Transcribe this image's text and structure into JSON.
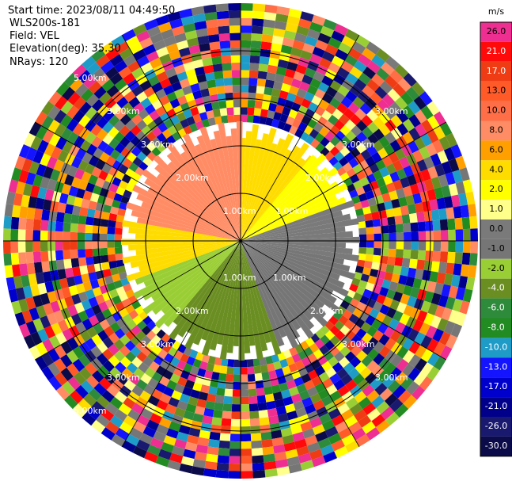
{
  "header": {
    "start_time": "Start time: 2023/08/11 04:49:50",
    "instrument": "WLS200s-181",
    "field": "Field: VEL",
    "elevation": "Elevation(deg): 35.30",
    "nrays": "NRays: 120"
  },
  "colorbar": {
    "unit": "m/s",
    "labels": [
      "26.0",
      "21.0",
      "17.0",
      "13.0",
      "10.0",
      "8.0",
      "6.0",
      "4.0",
      "2.0",
      "1.0",
      "0.0",
      "-1.0",
      "-2.0",
      "-4.0",
      "-6.0",
      "-8.0",
      "-10.0",
      "-13.0",
      "-17.0",
      "-21.0",
      "-26.0",
      "-30.0"
    ],
    "colors": [
      "#ee2e91",
      "#ff0a0a",
      "#f03c14",
      "#ff5a28",
      "#ff6e46",
      "#ff8c64",
      "#ffa000",
      "#ffdc00",
      "#ffff00",
      "#ffff8c",
      "#7a7a7a",
      "#767676",
      "#9ace35",
      "#6b8e23",
      "#2e8b3c",
      "#228b22",
      "#1f9bc8",
      "#1414ff",
      "#0000cd",
      "#00008b",
      "#191970",
      "#0b0b4a"
    ]
  },
  "chart_data": {
    "type": "heatmap",
    "projection": "polar PPI",
    "field": "VEL",
    "units": "m/s",
    "nrays": 120,
    "range_ring_labels": [
      "1.00km",
      "2.00km",
      "3.00km",
      "5.00km"
    ],
    "spoke_angles_deg": [
      0,
      30,
      60,
      90,
      120,
      150,
      180,
      210,
      240,
      270,
      300,
      330
    ],
    "color_scale_min": -30.0,
    "color_scale_max": 26.0,
    "inner_rings": [
      {
        "from_deg": 0,
        "to_deg": 40,
        "value": 2.0
      },
      {
        "from_deg": 40,
        "to_deg": 70,
        "value": 1.0
      },
      {
        "from_deg": 70,
        "to_deg": 100,
        "value": -1.0
      },
      {
        "from_deg": 100,
        "to_deg": 160,
        "value": -2.0
      },
      {
        "from_deg": 160,
        "to_deg": 220,
        "value": -6.0
      },
      {
        "from_deg": 220,
        "to_deg": 250,
        "value": -4.0
      },
      {
        "from_deg": 250,
        "to_deg": 280,
        "value": 2.0
      },
      {
        "from_deg": 280,
        "to_deg": 360,
        "value": 6.0
      }
    ]
  }
}
